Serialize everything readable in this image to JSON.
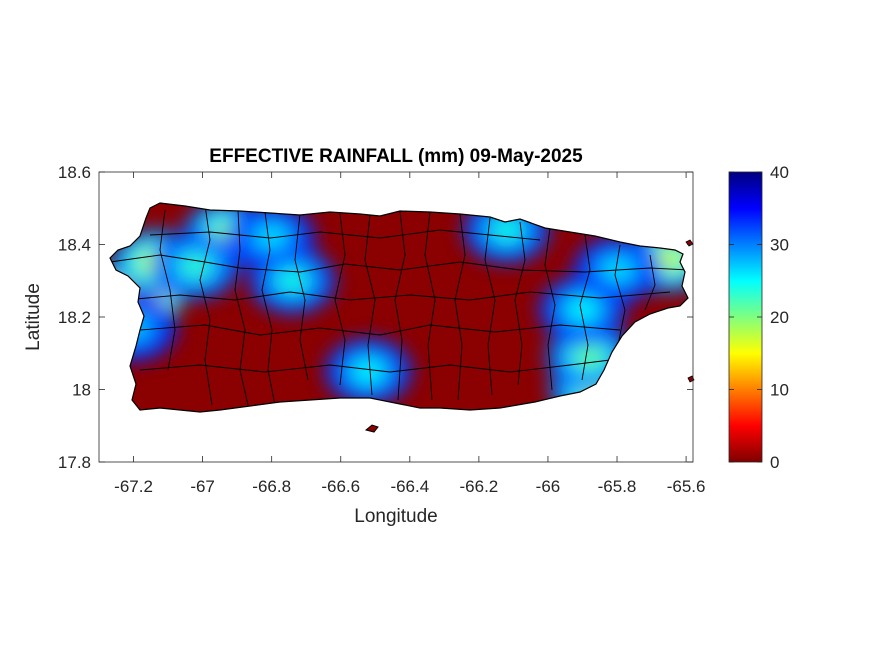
{
  "chart_data": {
    "type": "heatmap",
    "title": "EFFECTIVE RAINFALL (mm) 09-May-2025",
    "xlabel": "Longitude",
    "ylabel": "Latitude",
    "xlim": [
      -67.3,
      -65.58
    ],
    "ylim": [
      17.8,
      18.6
    ],
    "xticks": [
      -67.2,
      -67,
      -66.8,
      -66.6,
      -66.4,
      -66.2,
      -66,
      -65.8,
      -65.6
    ],
    "xtick_labels": [
      "-67.2",
      "-67",
      "-66.8",
      "-66.6",
      "-66.4",
      "-66.2",
      "-66",
      "-65.8",
      "-65.6"
    ],
    "yticks": [
      17.8,
      18,
      18.2,
      18.4,
      18.6
    ],
    "ytick_labels": [
      "17.8",
      "18",
      "18.2",
      "18.4",
      "18.6"
    ],
    "colorbar": {
      "colormap": "jet",
      "clim": [
        0,
        40
      ],
      "ticks": [
        0,
        10,
        20,
        30,
        40
      ],
      "tick_labels": [
        "0",
        "10",
        "20",
        "30",
        "40"
      ]
    },
    "grid": false,
    "low_value_color": "#8b0000",
    "rain_hotspots": [
      {
        "lon": -67.18,
        "lat": 18.27,
        "value": 34
      },
      {
        "lon": -67.14,
        "lat": 18.35,
        "value": 20
      },
      {
        "lon": -66.93,
        "lat": 18.43,
        "value": 18
      },
      {
        "lon": -67.02,
        "lat": 18.34,
        "value": 14
      },
      {
        "lon": -66.8,
        "lat": 18.42,
        "value": 11
      },
      {
        "lon": -66.74,
        "lat": 18.3,
        "value": 13
      },
      {
        "lon": -66.52,
        "lat": 18.05,
        "value": 12
      },
      {
        "lon": -65.87,
        "lat": 18.0,
        "value": 18
      },
      {
        "lon": -65.88,
        "lat": 18.09,
        "value": 16
      },
      {
        "lon": -65.65,
        "lat": 18.36,
        "value": 20
      },
      {
        "lon": -65.8,
        "lat": 18.33,
        "value": 11
      },
      {
        "lon": -66.12,
        "lat": 18.44,
        "value": 13
      },
      {
        "lon": -65.9,
        "lat": 18.22,
        "value": 12
      },
      {
        "lon": -67.2,
        "lat": 18.17,
        "value": 10
      }
    ]
  }
}
